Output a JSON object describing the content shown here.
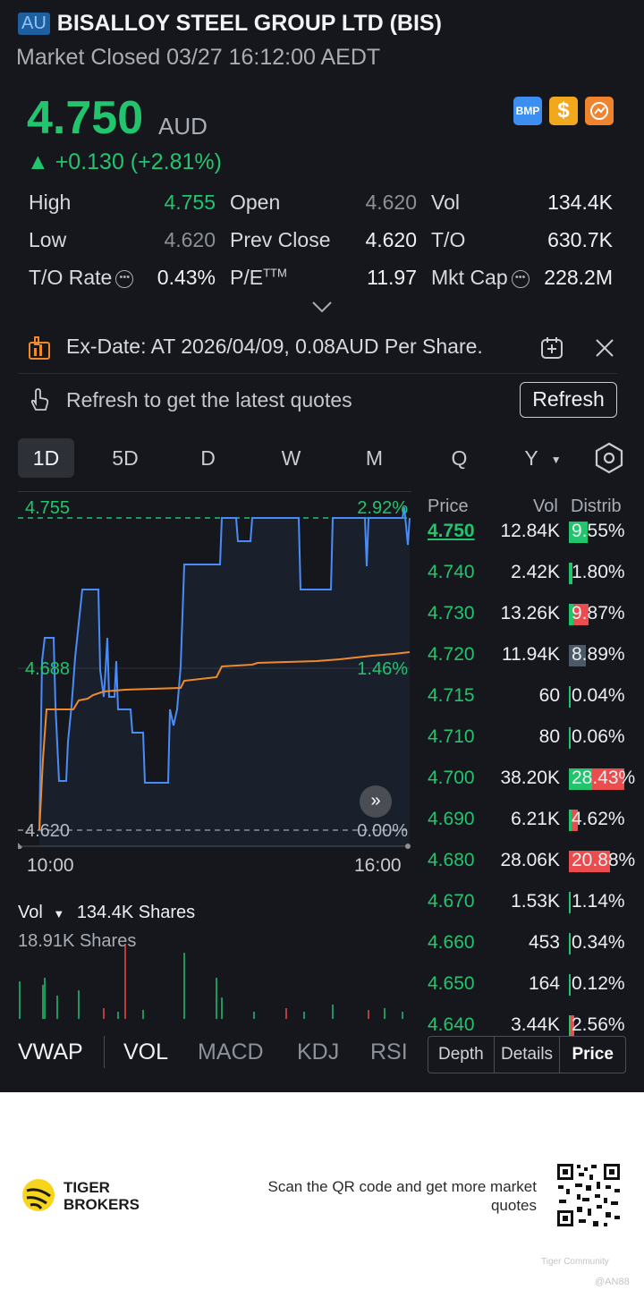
{
  "header": {
    "market": "AU",
    "name": "BISALLOY STEEL GROUP LTD (BIS)",
    "status": "Market Closed 03/27 16:12:00 AEDT"
  },
  "quote": {
    "price": "4.750",
    "currency": "AUD",
    "change": "▲ +0.130 (+2.81%)",
    "badges": [
      "BMP",
      "$",
      "orange-coin-icon"
    ]
  },
  "stats": {
    "high_label": "High",
    "high": "4.755",
    "open_label": "Open",
    "open": "4.620",
    "vol_label": "Vol",
    "vol": "134.4K",
    "low_label": "Low",
    "low": "4.620",
    "prev_close_label": "Prev Close",
    "prev_close": "4.620",
    "to_label": "T/O",
    "to": "630.7K",
    "to_rate_label": "T/O Rate",
    "to_rate": "0.43%",
    "pe_label": "P/E",
    "pe_sup": "TTM",
    "pe": "11.97",
    "mkt_cap_label": "Mkt Cap",
    "mkt_cap": "228.2M"
  },
  "notice": {
    "ex_date": "Ex-Date: AT 2026/04/09, 0.08AUD Per Share.",
    "refresh_hint": "Refresh to get the latest quotes",
    "refresh_button": "Refresh"
  },
  "periods": [
    "1D",
    "5D",
    "D",
    "W",
    "M",
    "Q",
    "Y"
  ],
  "active_period": "1D",
  "chart": {
    "high_label": "4.755",
    "high_pct": "2.92%",
    "mid_label": "4.688",
    "mid_pct": "1.46%",
    "low_label": "4.620",
    "low_pct": "0.00%",
    "time_start": "10:00",
    "time_end": "16:00",
    "colors": {
      "price": "#4a8cf7",
      "avg": "#f0892a",
      "up": "#22c46e"
    }
  },
  "volume": {
    "label": "Vol",
    "total": "134.4K Shares",
    "max_label": "18.91K Shares"
  },
  "indicators": [
    "VWAP",
    "VOL",
    "MACD",
    "KDJ",
    "RSI"
  ],
  "order_book": {
    "headers": {
      "price": "Price",
      "vol": "Vol",
      "dist": "Distrib"
    },
    "rows": [
      {
        "price": "4.750",
        "vol": "12.84K",
        "dist": "9.55%",
        "buy": 9.55,
        "sell": 0
      },
      {
        "price": "4.740",
        "vol": "2.42K",
        "dist": "1.80%",
        "buy": 1.8,
        "sell": 0
      },
      {
        "price": "4.730",
        "vol": "13.26K",
        "dist": "9.87%",
        "buy": 2.5,
        "sell": 7.37
      },
      {
        "price": "4.720",
        "vol": "11.94K",
        "dist": "8.89%",
        "buy": 0,
        "sell": 0,
        "neutral": 8.89
      },
      {
        "price": "4.715",
        "vol": "60",
        "dist": "0.04%",
        "buy": 0,
        "sell": 0
      },
      {
        "price": "4.710",
        "vol": "80",
        "dist": "0.06%",
        "buy": 0,
        "sell": 0
      },
      {
        "price": "4.700",
        "vol": "38.20K",
        "dist": "28.43%",
        "buy": 12,
        "sell": 16.43
      },
      {
        "price": "4.690",
        "vol": "6.21K",
        "dist": "4.62%",
        "buy": 1.5,
        "sell": 3.12
      },
      {
        "price": "4.680",
        "vol": "28.06K",
        "dist": "20.88%",
        "buy": 0,
        "sell": 20.88
      },
      {
        "price": "4.670",
        "vol": "1.53K",
        "dist": "1.14%",
        "buy": 1.14,
        "sell": 0
      },
      {
        "price": "4.660",
        "vol": "453",
        "dist": "0.34%",
        "buy": 0,
        "sell": 0
      },
      {
        "price": "4.650",
        "vol": "164",
        "dist": "0.12%",
        "buy": 0,
        "sell": 0
      },
      {
        "price": "4.640",
        "vol": "3.44K",
        "dist": "2.56%",
        "buy": 0.5,
        "sell": 2.06
      }
    ]
  },
  "bottom_tabs": [
    "Depth",
    "Details",
    "Price"
  ],
  "footer": {
    "brand_line1": "TIGER",
    "brand_line2": "BROKERS",
    "scan_text": "Scan the QR code and get more market quotes",
    "watermark": "Tiger Community",
    "watermark_user": "@AN88"
  }
}
